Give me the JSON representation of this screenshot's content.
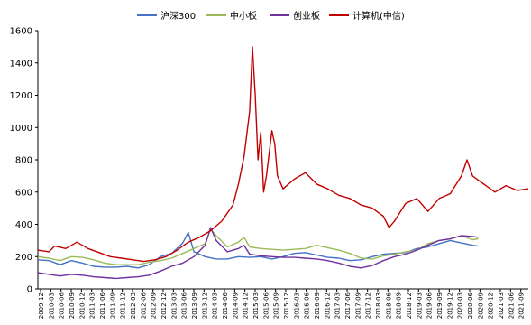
{
  "chart_data": {
    "type": "line",
    "title": "",
    "xlabel": "",
    "ylabel": "",
    "ylim": [
      0,
      1600
    ],
    "yticks": [
      0,
      200,
      400,
      600,
      800,
      1000,
      1200,
      1400,
      1600
    ],
    "grid": false,
    "legend_position": "top",
    "x_tick_labels": [
      "2009-12",
      "2010-03",
      "2010-06",
      "2010-09",
      "2010-12",
      "2011-03",
      "2011-06",
      "2011-09",
      "2011-12",
      "2012-03",
      "2012-06",
      "2012-09",
      "2012-12",
      "2013-03",
      "2013-06",
      "2013-09",
      "2013-12",
      "2014-03",
      "2014-06",
      "2014-09",
      "2014-12",
      "2015-03",
      "2015-06",
      "2015-09",
      "2015-12",
      "2016-03",
      "2016-06",
      "2016-09",
      "2016-12",
      "2017-03",
      "2017-06",
      "2017-09",
      "2017-12",
      "2018-03",
      "2018-06",
      "2018-09",
      "2018-12",
      "2019-03",
      "2019-06",
      "2019-09",
      "2019-12",
      "2020-03",
      "2020-06",
      "2020-09",
      "2020-12",
      "2021-03",
      "2021-06",
      "2021-09"
    ],
    "series": [
      {
        "name": "沪深300",
        "color": "#4472c4",
        "points": [
          [
            0,
            180
          ],
          [
            2,
            175
          ],
          [
            4,
            150
          ],
          [
            6,
            175
          ],
          [
            8,
            160
          ],
          [
            10,
            140
          ],
          [
            12,
            135
          ],
          [
            14,
            135
          ],
          [
            16,
            140
          ],
          [
            18,
            130
          ],
          [
            20,
            150
          ],
          [
            22,
            200
          ],
          [
            24,
            220
          ],
          [
            26,
            285
          ],
          [
            27,
            350
          ],
          [
            28,
            230
          ],
          [
            30,
            200
          ],
          [
            32,
            185
          ],
          [
            34,
            185
          ],
          [
            36,
            200
          ],
          [
            38,
            195
          ],
          [
            40,
            200
          ],
          [
            42,
            185
          ],
          [
            44,
            200
          ],
          [
            46,
            220
          ],
          [
            48,
            225
          ],
          [
            50,
            210
          ],
          [
            52,
            195
          ],
          [
            54,
            190
          ],
          [
            56,
            175
          ],
          [
            58,
            180
          ],
          [
            60,
            200
          ],
          [
            62,
            215
          ],
          [
            64,
            220
          ],
          [
            66,
            225
          ],
          [
            68,
            250
          ],
          [
            70,
            260
          ],
          [
            72,
            280
          ],
          [
            74,
            300
          ],
          [
            76,
            285
          ],
          [
            78,
            270
          ],
          [
            79,
            265
          ]
        ]
      },
      {
        "name": "中小板",
        "color": "#9bbb59",
        "points": [
          [
            0,
            200
          ],
          [
            2,
            190
          ],
          [
            4,
            175
          ],
          [
            6,
            200
          ],
          [
            8,
            195
          ],
          [
            10,
            180
          ],
          [
            12,
            160
          ],
          [
            14,
            150
          ],
          [
            16,
            150
          ],
          [
            18,
            150
          ],
          [
            20,
            165
          ],
          [
            22,
            175
          ],
          [
            24,
            190
          ],
          [
            26,
            220
          ],
          [
            28,
            250
          ],
          [
            30,
            280
          ],
          [
            31,
            370
          ],
          [
            32,
            330
          ],
          [
            34,
            260
          ],
          [
            36,
            290
          ],
          [
            37,
            320
          ],
          [
            38,
            260
          ],
          [
            40,
            250
          ],
          [
            42,
            245
          ],
          [
            44,
            240
          ],
          [
            46,
            245
          ],
          [
            48,
            250
          ],
          [
            50,
            270
          ],
          [
            52,
            255
          ],
          [
            54,
            240
          ],
          [
            56,
            220
          ],
          [
            58,
            190
          ],
          [
            60,
            185
          ],
          [
            62,
            205
          ],
          [
            64,
            215
          ],
          [
            66,
            230
          ],
          [
            68,
            240
          ],
          [
            70,
            280
          ],
          [
            72,
            300
          ],
          [
            74,
            310
          ],
          [
            76,
            330
          ],
          [
            78,
            305
          ],
          [
            79,
            310
          ]
        ]
      },
      {
        "name": "创业板",
        "color": "#7030a0",
        "points": [
          [
            0,
            100
          ],
          [
            2,
            90
          ],
          [
            4,
            80
          ],
          [
            6,
            90
          ],
          [
            8,
            85
          ],
          [
            10,
            75
          ],
          [
            12,
            70
          ],
          [
            14,
            65
          ],
          [
            16,
            70
          ],
          [
            18,
            75
          ],
          [
            20,
            85
          ],
          [
            22,
            110
          ],
          [
            24,
            140
          ],
          [
            26,
            160
          ],
          [
            28,
            200
          ],
          [
            30,
            270
          ],
          [
            31,
            380
          ],
          [
            32,
            300
          ],
          [
            34,
            230
          ],
          [
            36,
            250
          ],
          [
            37,
            270
          ],
          [
            38,
            215
          ],
          [
            40,
            205
          ],
          [
            42,
            200
          ],
          [
            44,
            195
          ],
          [
            46,
            195
          ],
          [
            48,
            190
          ],
          [
            50,
            185
          ],
          [
            52,
            175
          ],
          [
            54,
            160
          ],
          [
            56,
            140
          ],
          [
            58,
            130
          ],
          [
            60,
            145
          ],
          [
            62,
            175
          ],
          [
            64,
            200
          ],
          [
            66,
            215
          ],
          [
            68,
            240
          ],
          [
            70,
            270
          ],
          [
            72,
            300
          ],
          [
            74,
            310
          ],
          [
            76,
            330
          ],
          [
            78,
            325
          ],
          [
            79,
            320
          ]
        ]
      },
      {
        "name": "计算机(中信)",
        "color": "#c00000",
        "points": [
          [
            0,
            240
          ],
          [
            2,
            230
          ],
          [
            3,
            265
          ],
          [
            5,
            250
          ],
          [
            7,
            290
          ],
          [
            9,
            250
          ],
          [
            11,
            225
          ],
          [
            13,
            200
          ],
          [
            15,
            190
          ],
          [
            17,
            180
          ],
          [
            19,
            170
          ],
          [
            21,
            180
          ],
          [
            23,
            200
          ],
          [
            25,
            240
          ],
          [
            27,
            290
          ],
          [
            29,
            320
          ],
          [
            31,
            360
          ],
          [
            33,
            420
          ],
          [
            35,
            520
          ],
          [
            36,
            650
          ],
          [
            37,
            820
          ],
          [
            38,
            1100
          ],
          [
            38.5,
            1500
          ],
          [
            39,
            1200
          ],
          [
            39.5,
            800
          ],
          [
            40,
            970
          ],
          [
            40.5,
            600
          ],
          [
            41,
            700
          ],
          [
            42,
            980
          ],
          [
            42.5,
            900
          ],
          [
            43,
            700
          ],
          [
            44,
            620
          ],
          [
            46,
            680
          ],
          [
            48,
            720
          ],
          [
            50,
            650
          ],
          [
            52,
            620
          ],
          [
            54,
            580
          ],
          [
            56,
            560
          ],
          [
            58,
            520
          ],
          [
            60,
            500
          ],
          [
            62,
            450
          ],
          [
            63,
            380
          ],
          [
            64,
            420
          ],
          [
            66,
            530
          ],
          [
            68,
            560
          ],
          [
            70,
            480
          ],
          [
            72,
            560
          ],
          [
            74,
            590
          ],
          [
            76,
            700
          ],
          [
            77,
            800
          ],
          [
            78,
            700
          ],
          [
            80,
            650
          ],
          [
            82,
            600
          ],
          [
            84,
            640
          ],
          [
            86,
            610
          ],
          [
            88,
            620
          ]
        ]
      }
    ]
  }
}
